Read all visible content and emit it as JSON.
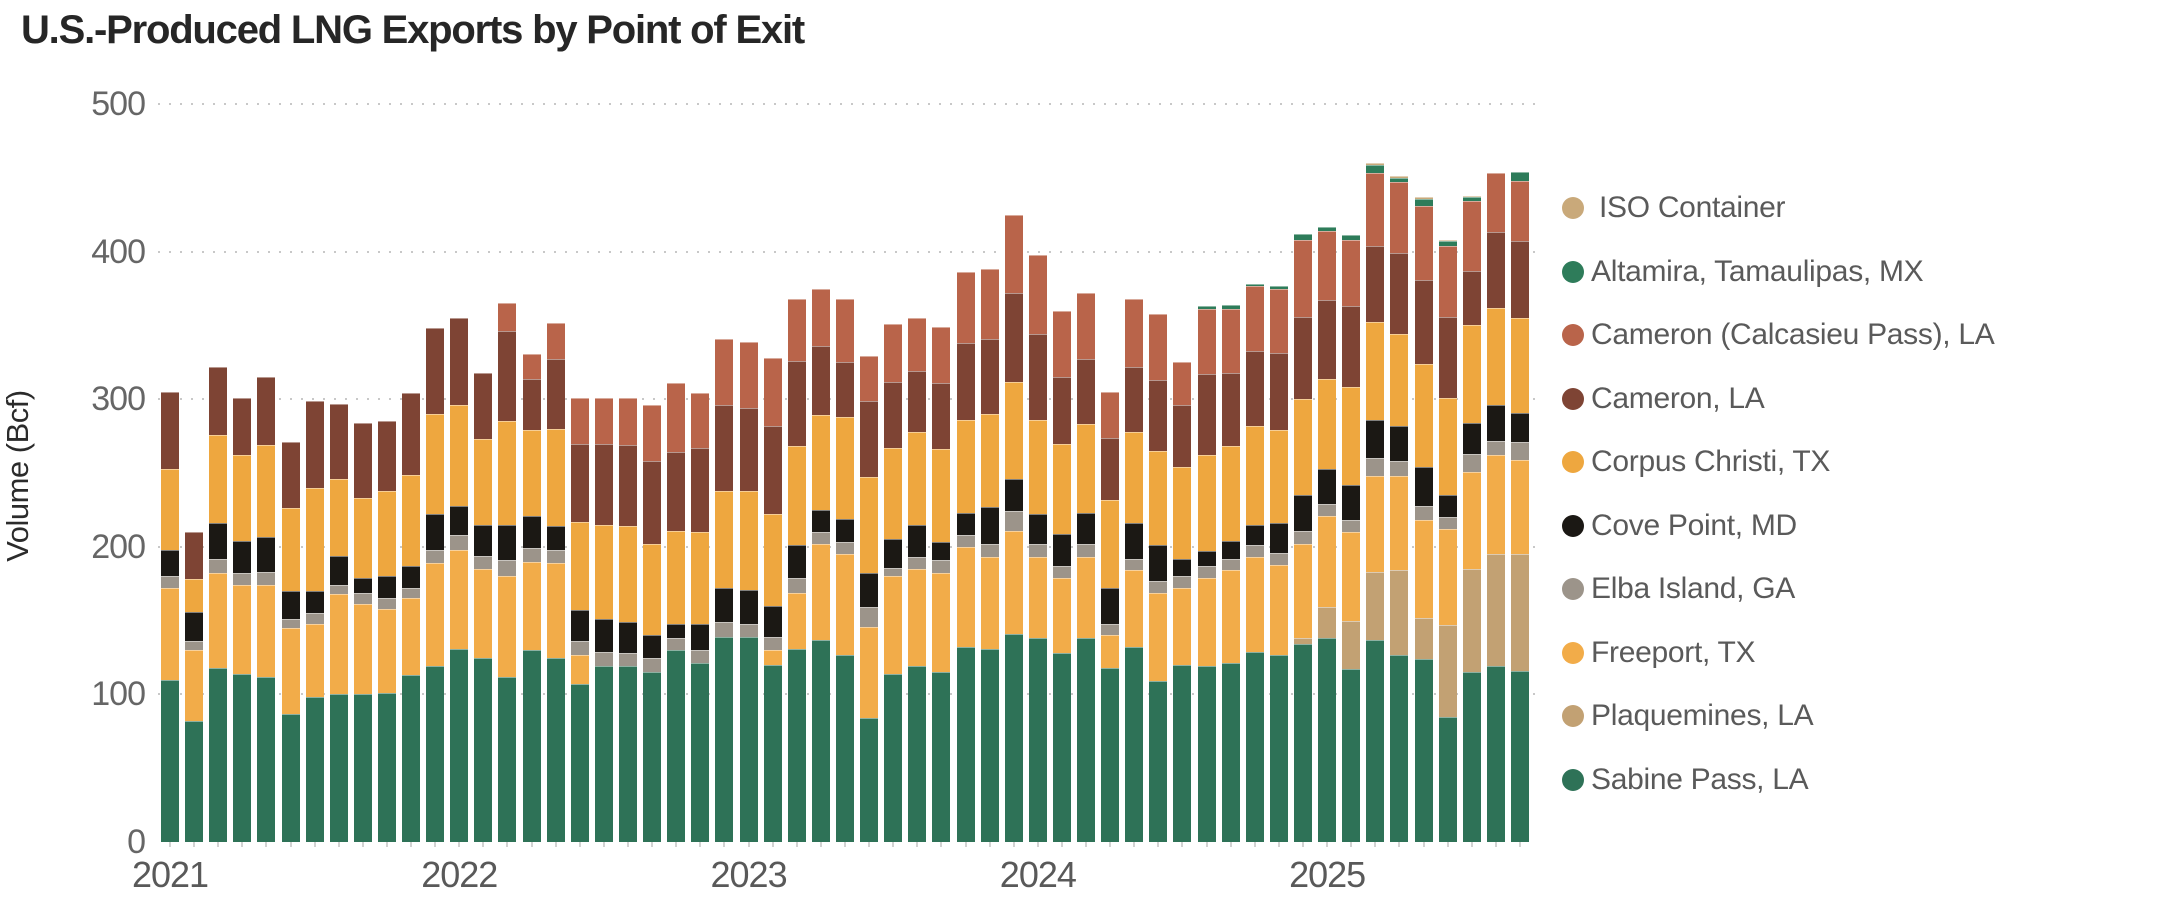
{
  "title": "U.S.-Produced LNG Exports by Point of Exit",
  "y_axis": {
    "label": "Volume (Bcf)",
    "ticks": [
      0,
      100,
      200,
      300,
      400,
      500
    ]
  },
  "x_axis": {
    "year_labels": [
      "2021",
      "2022",
      "2023",
      "2024",
      "2025"
    ]
  },
  "legend": {
    "items": [
      {
        "label": "ISO Container",
        "color": "#C9A97A"
      },
      {
        "label": "Altamira, Tamaulipas, MX",
        "color": "#2E7C5A"
      },
      {
        "label": "Cameron (Calcasieu Pass), LA",
        "color": "#B9644A"
      },
      {
        "label": "Cameron, LA",
        "color": "#7E4434"
      },
      {
        "label": "Corpus Christi, TX",
        "color": "#EEA73F"
      },
      {
        "label": "Cove Point, MD",
        "color": "#1B1814"
      },
      {
        "label": "Elba Island, GA",
        "color": "#9C948A"
      },
      {
        "label": "Freeport, TX",
        "color": "#F2AC49"
      },
      {
        "label": "Plaquemines, LA",
        "color": "#C2A173"
      },
      {
        "label": "Sabine Pass, LA",
        "color": "#2E7257"
      }
    ]
  },
  "chart_data": {
    "type": "bar",
    "stacked": true,
    "unit": "Bcf",
    "title": "U.S.-Produced LNG Exports by Point of Exit",
    "xlabel": "",
    "ylabel": "Volume (Bcf)",
    "ylim": [
      0,
      500
    ],
    "grid": "dotted horizontal gridlines at 100,200,300,400,500",
    "legend_position": "right",
    "months": [
      "2021-01",
      "2021-02",
      "2021-03",
      "2021-04",
      "2021-05",
      "2021-06",
      "2021-07",
      "2021-08",
      "2021-09",
      "2021-10",
      "2021-11",
      "2021-12",
      "2022-01",
      "2022-02",
      "2022-03",
      "2022-04",
      "2022-05",
      "2022-06",
      "2022-07",
      "2022-08",
      "2022-09",
      "2022-10",
      "2022-11",
      "2022-12",
      "2023-01",
      "2023-02",
      "2023-03",
      "2023-04",
      "2023-05",
      "2023-06",
      "2023-07",
      "2023-08",
      "2023-09",
      "2023-10",
      "2023-11",
      "2023-12",
      "2024-01",
      "2024-02",
      "2024-03",
      "2024-04",
      "2024-05",
      "2024-06",
      "2024-07",
      "2024-08",
      "2024-09",
      "2024-10",
      "2024-11",
      "2024-12",
      "2025-01",
      "2025-02",
      "2025-03",
      "2025-04",
      "2025-05",
      "2025-06",
      "2025-07",
      "2025-08",
      "2025-09"
    ],
    "series": [
      {
        "name": "Sabine Pass, LA",
        "color": "#2E7257",
        "values": [
          110,
          82,
          118,
          114,
          112,
          87,
          98,
          100,
          100,
          101,
          113,
          119,
          131,
          125,
          112,
          130,
          125,
          107,
          119,
          119,
          115,
          130,
          121,
          139,
          139,
          120,
          131,
          137,
          127,
          84,
          114,
          119,
          115,
          132,
          131,
          141,
          138,
          128,
          138,
          118,
          132,
          109,
          120,
          119,
          121,
          129,
          127,
          134,
          138,
          117,
          137,
          127,
          124,
          85,
          115,
          119,
          116
        ]
      },
      {
        "name": "Plaquemines, LA",
        "color": "#C2A173",
        "values": [
          0,
          0,
          0,
          0,
          0,
          0,
          0,
          0,
          0,
          0,
          0,
          0,
          0,
          0,
          0,
          0,
          0,
          0,
          0,
          0,
          0,
          0,
          0,
          0,
          0,
          0,
          0,
          0,
          0,
          0,
          0,
          0,
          0,
          0,
          0,
          0,
          0,
          0,
          0,
          0,
          0,
          0,
          0,
          0,
          0,
          0,
          0,
          4,
          21,
          33,
          46,
          57,
          28,
          62,
          70,
          76,
          79
        ]
      },
      {
        "name": "Freeport, TX",
        "color": "#F2AC49",
        "values": [
          62,
          48,
          64,
          60,
          62,
          58,
          50,
          68,
          61,
          57,
          52,
          70,
          67,
          60,
          68,
          60,
          64,
          20,
          0,
          0,
          0,
          0,
          0,
          0,
          0,
          10,
          38,
          65,
          68,
          62,
          66,
          66,
          67,
          68,
          62,
          70,
          55,
          51,
          55,
          22,
          52,
          60,
          52,
          60,
          63,
          64,
          61,
          64,
          62,
          60,
          65,
          64,
          66,
          65,
          66,
          67,
          64
        ]
      },
      {
        "name": "Elba Island, GA",
        "color": "#9C948A",
        "values": [
          8,
          6,
          10,
          8,
          9,
          6,
          7,
          6,
          8,
          7,
          7,
          9,
          10,
          9,
          11,
          9,
          9,
          9,
          10,
          9,
          10,
          8,
          9,
          10,
          9,
          9,
          10,
          8,
          8,
          13,
          6,
          8,
          9,
          8,
          9,
          13,
          9,
          8,
          9,
          8,
          8,
          8,
          8,
          8,
          8,
          8,
          8,
          9,
          8,
          8,
          12,
          10,
          10,
          8,
          12,
          10,
          12
        ]
      },
      {
        "name": "Cove Point, MD",
        "color": "#1B1814",
        "values": [
          18,
          20,
          24,
          22,
          24,
          19,
          15,
          20,
          10,
          15,
          15,
          24,
          20,
          21,
          24,
          22,
          16,
          21,
          22,
          21,
          15,
          10,
          18,
          23,
          23,
          21,
          22,
          15,
          16,
          23,
          19,
          22,
          12,
          15,
          25,
          22,
          20,
          22,
          21,
          24,
          24,
          24,
          12,
          10,
          12,
          14,
          20,
          24,
          24,
          24,
          26,
          24,
          26,
          15,
          21,
          24,
          20
        ]
      },
      {
        "name": "Corpus Christi, TX",
        "color": "#EEA73F",
        "values": [
          55,
          22,
          60,
          58,
          62,
          56,
          70,
          52,
          54,
          58,
          62,
          68,
          68,
          58,
          70,
          58,
          66,
          60,
          64,
          65,
          62,
          63,
          62,
          66,
          67,
          62,
          67,
          64,
          69,
          65,
          62,
          63,
          63,
          63,
          63,
          66,
          64,
          61,
          60,
          60,
          62,
          64,
          62,
          65,
          64,
          67,
          63,
          65,
          61,
          66,
          66,
          62,
          70,
          66,
          66,
          66,
          64
        ]
      },
      {
        "name": "Cameron, LA",
        "color": "#7E4434",
        "values": [
          52,
          32,
          46,
          39,
          46,
          45,
          59,
          51,
          51,
          47,
          55,
          58,
          59,
          45,
          61,
          35,
          47,
          53,
          55,
          55,
          56,
          53,
          57,
          58,
          56,
          60,
          58,
          47,
          37,
          52,
          45,
          41,
          45,
          52,
          51,
          60,
          58,
          45,
          44,
          42,
          44,
          48,
          42,
          55,
          50,
          51,
          52,
          56,
          53,
          55,
          52,
          55,
          57,
          55,
          37,
          51,
          52
        ]
      },
      {
        "name": "Cameron (Calcasieu Pass), LA",
        "color": "#B9644A",
        "values": [
          0,
          0,
          0,
          0,
          0,
          0,
          0,
          0,
          0,
          0,
          0,
          0,
          0,
          0,
          19,
          17,
          25,
          31,
          31,
          32,
          38,
          47,
          37,
          45,
          45,
          46,
          42,
          39,
          43,
          30,
          39,
          36,
          38,
          48,
          47,
          53,
          54,
          45,
          45,
          31,
          46,
          45,
          29,
          44,
          43,
          44,
          44,
          52,
          47,
          45,
          49,
          48,
          50,
          48,
          47,
          40,
          41
        ]
      },
      {
        "name": "Altamira, Tamaulipas, MX",
        "color": "#2E7C5A",
        "values": [
          0,
          0,
          0,
          0,
          0,
          0,
          0,
          0,
          0,
          0,
          0,
          0,
          0,
          0,
          0,
          0,
          0,
          0,
          0,
          0,
          0,
          0,
          0,
          0,
          0,
          0,
          0,
          0,
          0,
          0,
          0,
          0,
          0,
          0,
          0,
          0,
          0,
          0,
          0,
          0,
          0,
          0,
          0,
          2,
          3,
          1,
          2,
          4,
          3,
          3,
          6,
          3,
          5,
          3,
          3,
          0,
          6
        ]
      },
      {
        "name": "ISO Container",
        "color": "#C9A97A",
        "values": [
          0,
          0,
          0,
          0,
          0,
          0,
          0,
          0,
          0,
          0,
          0,
          0,
          0,
          0,
          0,
          0,
          0,
          0,
          0,
          0,
          0,
          0,
          0,
          0,
          0,
          0,
          0,
          0,
          0,
          0,
          0,
          0,
          0,
          0,
          0,
          0,
          0,
          0,
          0,
          0,
          0,
          0,
          0,
          0,
          0,
          0,
          0,
          0,
          0,
          0,
          1,
          1,
          1,
          1,
          1,
          0,
          0
        ]
      }
    ]
  }
}
